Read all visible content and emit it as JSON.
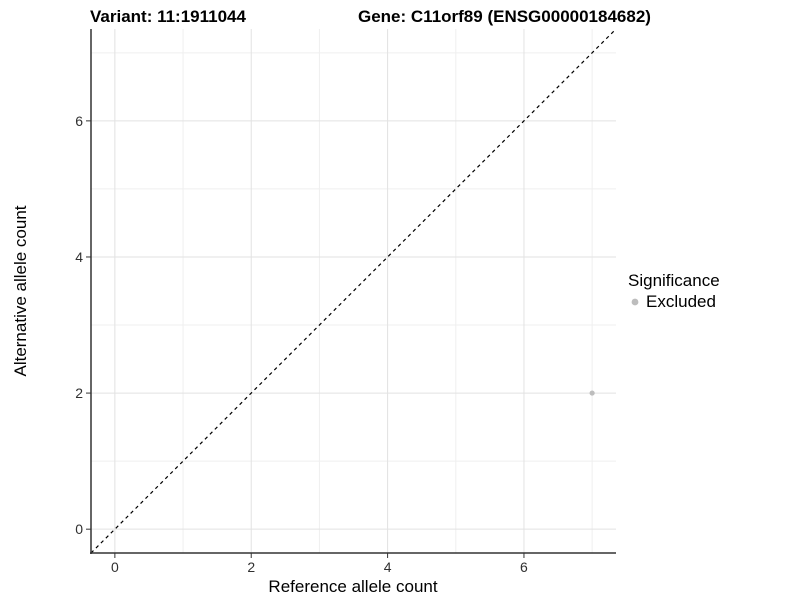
{
  "titles": {
    "variant": "Variant: 11:1911044",
    "gene": "Gene: C11orf89 (ENSG00000184682)"
  },
  "legend": {
    "title": "Significance",
    "items": [
      {
        "label": "Excluded",
        "color": "#bdbdbd"
      }
    ]
  },
  "colors": {
    "background": "#ffffff",
    "axis_line": "#333333",
    "tick_label": "#303030",
    "grid_major": "#e2e2e2",
    "grid_minor": "#efefef",
    "reference_line": "#000000",
    "point": "#bdbdbd"
  },
  "chart_data": {
    "type": "scatter",
    "title": "Variant: 11:1911044 — Gene: C11orf89 (ENSG00000184682)",
    "xlabel": "Reference allele count",
    "ylabel": "Alternative allele count",
    "xlim": [
      -0.35,
      7.35
    ],
    "ylim": [
      -0.35,
      7.35
    ],
    "x_major_ticks": [
      0,
      2,
      4,
      6
    ],
    "x_minor_ticks": [
      1,
      3,
      5,
      7
    ],
    "y_major_ticks": [
      0,
      2,
      4,
      6
    ],
    "y_minor_ticks": [
      1,
      3,
      5,
      7
    ],
    "x_tick_labels": [
      "0",
      "2",
      "4",
      "6"
    ],
    "y_tick_labels": [
      "0",
      "2",
      "4",
      "6"
    ],
    "grid": true,
    "legend_position": "right",
    "series": [
      {
        "name": "Excluded",
        "color": "#bdbdbd",
        "points": [
          {
            "x": 7,
            "y": 2
          }
        ]
      }
    ],
    "reference_line": {
      "equation": "y = x",
      "style": "dashed",
      "color": "#000000"
    }
  }
}
